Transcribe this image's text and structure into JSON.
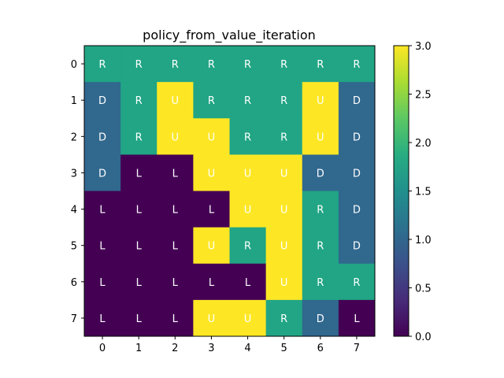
{
  "chart_data": {
    "type": "heatmap",
    "title": "policy_from_value_iteration",
    "x_ticks": [
      "0",
      "1",
      "2",
      "3",
      "4",
      "5",
      "6",
      "7"
    ],
    "y_ticks": [
      "0",
      "1",
      "2",
      "3",
      "4",
      "5",
      "6",
      "7"
    ],
    "values": [
      [
        2,
        2,
        2,
        2,
        2,
        2,
        2,
        2
      ],
      [
        1,
        2,
        3,
        2,
        2,
        2,
        3,
        1
      ],
      [
        1,
        2,
        3,
        3,
        2,
        2,
        3,
        1
      ],
      [
        1,
        0,
        0,
        3,
        3,
        3,
        1,
        1
      ],
      [
        0,
        0,
        0,
        0,
        3,
        3,
        2,
        1
      ],
      [
        0,
        0,
        0,
        3,
        2,
        3,
        2,
        1
      ],
      [
        0,
        0,
        0,
        0,
        0,
        3,
        2,
        2
      ],
      [
        0,
        0,
        0,
        3,
        3,
        2,
        1,
        0
      ]
    ],
    "labels": [
      [
        "R",
        "R",
        "R",
        "R",
        "R",
        "R",
        "R",
        "R"
      ],
      [
        "D",
        "R",
        "U",
        "R",
        "R",
        "R",
        "U",
        "D"
      ],
      [
        "D",
        "R",
        "U",
        "U",
        "R",
        "R",
        "U",
        "D"
      ],
      [
        "D",
        "L",
        "L",
        "U",
        "U",
        "U",
        "D",
        "D"
      ],
      [
        "L",
        "L",
        "L",
        "L",
        "U",
        "U",
        "R",
        "D"
      ],
      [
        "L",
        "L",
        "L",
        "U",
        "R",
        "U",
        "R",
        "D"
      ],
      [
        "L",
        "L",
        "L",
        "L",
        "L",
        "U",
        "R",
        "R"
      ],
      [
        "L",
        "L",
        "L",
        "U",
        "U",
        "R",
        "D",
        "L"
      ]
    ],
    "colormap": "viridis",
    "value_colors": [
      "#440154",
      "#31688e",
      "#21a585",
      "#fde725"
    ],
    "colorbar": {
      "range": [
        0.0,
        3.0
      ],
      "ticks": [
        "0.0",
        "0.5",
        "1.0",
        "1.5",
        "2.0",
        "2.5",
        "3.0"
      ]
    },
    "grid": false
  }
}
